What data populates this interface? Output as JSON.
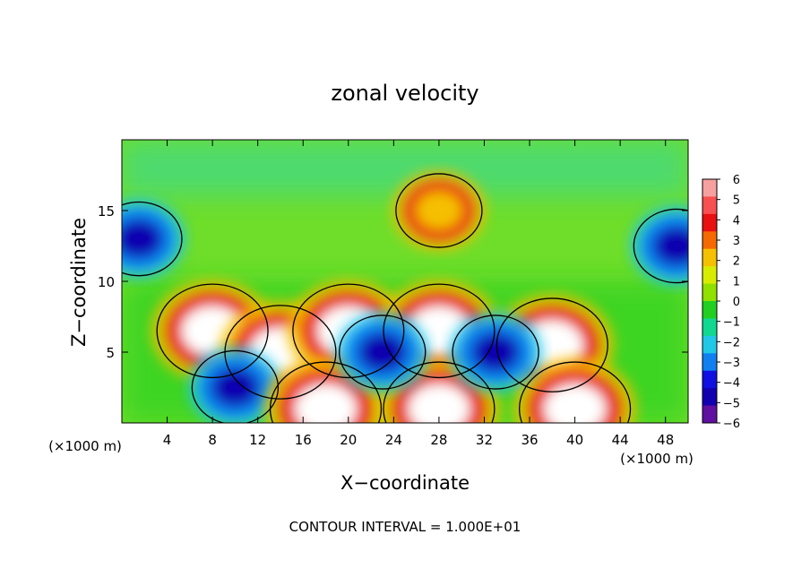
{
  "chart_data": {
    "type": "heatmap",
    "title": "zonal velocity",
    "xlabel": "X−coordinate",
    "ylabel": "Z−coordinate",
    "x_unit_left": "(×1000 m)",
    "x_unit_right": "(×1000 m)",
    "footnote": "CONTOUR INTERVAL = 1.000E+01",
    "xlim": [
      0,
      50
    ],
    "ylim": [
      0,
      20
    ],
    "x_ticks": [
      4,
      8,
      12,
      16,
      20,
      24,
      28,
      32,
      36,
      40,
      44,
      48
    ],
    "y_ticks": [
      5,
      10,
      15
    ],
    "colorbar": {
      "min": -6,
      "max": 6,
      "ticks": [
        6,
        5,
        4,
        3,
        2,
        1,
        0,
        -1,
        -2,
        -3,
        -4,
        -5,
        -6
      ],
      "tick_labels": [
        "6",
        "5",
        "4",
        "3",
        "2",
        "1",
        "0",
        "−1",
        "−2",
        "−3",
        "−4",
        "−5",
        "−6"
      ],
      "colors": [
        "#f7a0a0",
        "#f75050",
        "#e81010",
        "#f56a00",
        "#f5c000",
        "#d8ec00",
        "#90e000",
        "#20cf20",
        "#10d890",
        "#20c8e8",
        "#1080f0",
        "#1010e0",
        "#1000b0",
        "#6010a0"
      ]
    },
    "features": [
      {
        "x": 1.5,
        "z": 13,
        "value": -4.5
      },
      {
        "x": 49,
        "z": 12.5,
        "value": -4.5
      },
      {
        "x": 28,
        "z": 15,
        "value": 2.5
      },
      {
        "x": 8,
        "z": 6.5,
        "value": 8
      },
      {
        "x": 14,
        "z": 5,
        "value": 7
      },
      {
        "x": 20,
        "z": 6.5,
        "value": 8
      },
      {
        "x": 28,
        "z": 6.5,
        "value": 7
      },
      {
        "x": 38,
        "z": 5.5,
        "value": 9
      },
      {
        "x": 10,
        "z": 2.5,
        "value": -5
      },
      {
        "x": 18,
        "z": 1,
        "value": 7
      },
      {
        "x": 28,
        "z": 1,
        "value": 7
      },
      {
        "x": 40,
        "z": 1,
        "value": 8
      },
      {
        "x": 33,
        "z": 5,
        "value": -5
      },
      {
        "x": 23,
        "z": 5,
        "value": -5
      }
    ]
  }
}
